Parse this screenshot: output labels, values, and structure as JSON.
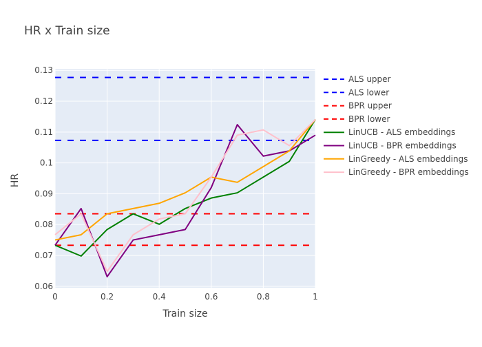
{
  "chart_data": {
    "type": "line",
    "title": "HR x Train size",
    "xlabel": "Train size",
    "ylabel": "HR",
    "xlim": [
      0,
      1
    ],
    "ylim": [
      0.06,
      0.13
    ],
    "xticks": [
      0,
      0.2,
      0.4,
      0.6,
      0.8,
      1
    ],
    "xtick_labels": [
      "0",
      "0.2",
      "0.4",
      "0.6",
      "0.8",
      "1"
    ],
    "yticks": [
      0.06,
      0.07,
      0.08,
      0.09,
      0.1,
      0.11,
      0.12,
      0.13
    ],
    "ytick_labels": [
      "0.06",
      "0.07",
      "0.08",
      "0.09",
      "0.1",
      "0.11",
      "0.12",
      "0.13"
    ],
    "grid": true,
    "legend_position": "right",
    "x": [
      0,
      0.1,
      0.2,
      0.3,
      0.4,
      0.5,
      0.6,
      0.7,
      0.8,
      0.9,
      1.0
    ],
    "series": [
      {
        "name": "ALS upper",
        "kind": "hline",
        "value": 0.1277,
        "color": "#0000ff",
        "dash": "dash"
      },
      {
        "name": "ALS lower",
        "kind": "hline",
        "value": 0.1073,
        "color": "#0000ff",
        "dash": "dash"
      },
      {
        "name": "BPR upper",
        "kind": "hline",
        "value": 0.0835,
        "color": "#ff0000",
        "dash": "dash"
      },
      {
        "name": "BPR lower",
        "kind": "hline",
        "value": 0.0733,
        "color": "#ff0000",
        "dash": "dash"
      },
      {
        "name": "LinUCB - ALS embeddings",
        "kind": "line",
        "color": "#008000",
        "values": [
          0.0733,
          0.0698,
          0.0784,
          0.0835,
          0.0801,
          0.0852,
          0.0886,
          0.0903,
          0.0954,
          0.1005,
          0.1141
        ]
      },
      {
        "name": "LinUCB - BPR embeddings",
        "kind": "line",
        "color": "#800080",
        "values": [
          0.0733,
          0.0852,
          0.0631,
          0.075,
          0.0767,
          0.0784,
          0.092,
          0.1124,
          0.1022,
          0.1039,
          0.109
        ]
      },
      {
        "name": "LinGreedy - ALS embeddings",
        "kind": "line",
        "color": "#ffa500",
        "values": [
          0.075,
          0.0767,
          0.0835,
          0.0852,
          0.0869,
          0.0903,
          0.0954,
          0.0937,
          0.0988,
          0.1039,
          0.1141
        ]
      },
      {
        "name": "LinGreedy - BPR embeddings",
        "kind": "line",
        "color": "#ffc0cb",
        "values": [
          0.0767,
          0.0835,
          0.0648,
          0.0767,
          0.0818,
          0.0835,
          0.0954,
          0.109,
          0.1107,
          0.1056,
          0.1141
        ]
      }
    ]
  }
}
